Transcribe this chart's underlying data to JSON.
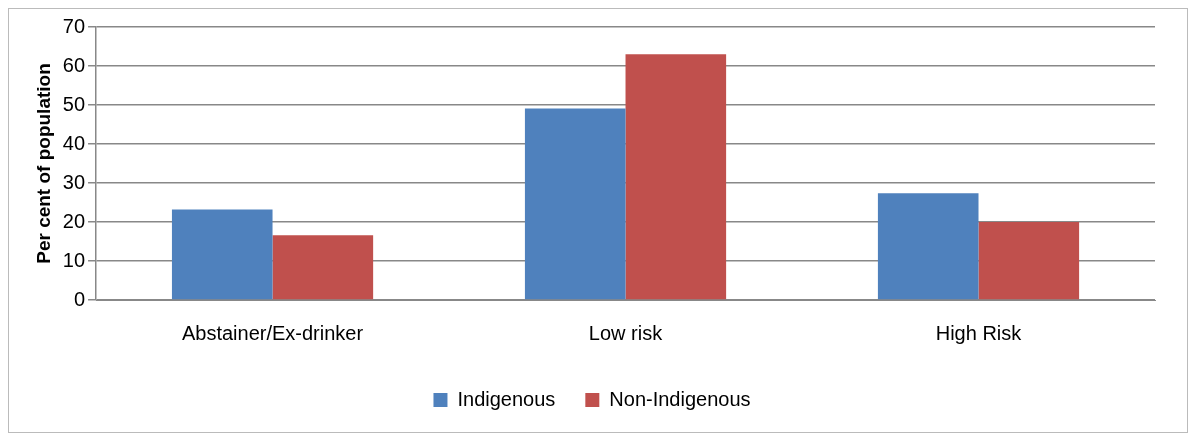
{
  "chart_data": {
    "type": "bar",
    "ylabel": "Per cent of population",
    "categories": [
      "Abstainer/Ex-drinker",
      "Low risk",
      "High Risk"
    ],
    "series": [
      {
        "name": "Indigenous",
        "color": "#4f81bd",
        "values": [
          23.2,
          49.1,
          27.4
        ]
      },
      {
        "name": "Non-Indigenous",
        "color": "#c0504d",
        "values": [
          16.6,
          63.0,
          20.0
        ]
      }
    ],
    "ylim": [
      0,
      70
    ],
    "yticks": [
      0,
      10,
      20,
      30,
      40,
      50,
      60,
      70
    ],
    "grid": "y",
    "legend": "bottom"
  }
}
